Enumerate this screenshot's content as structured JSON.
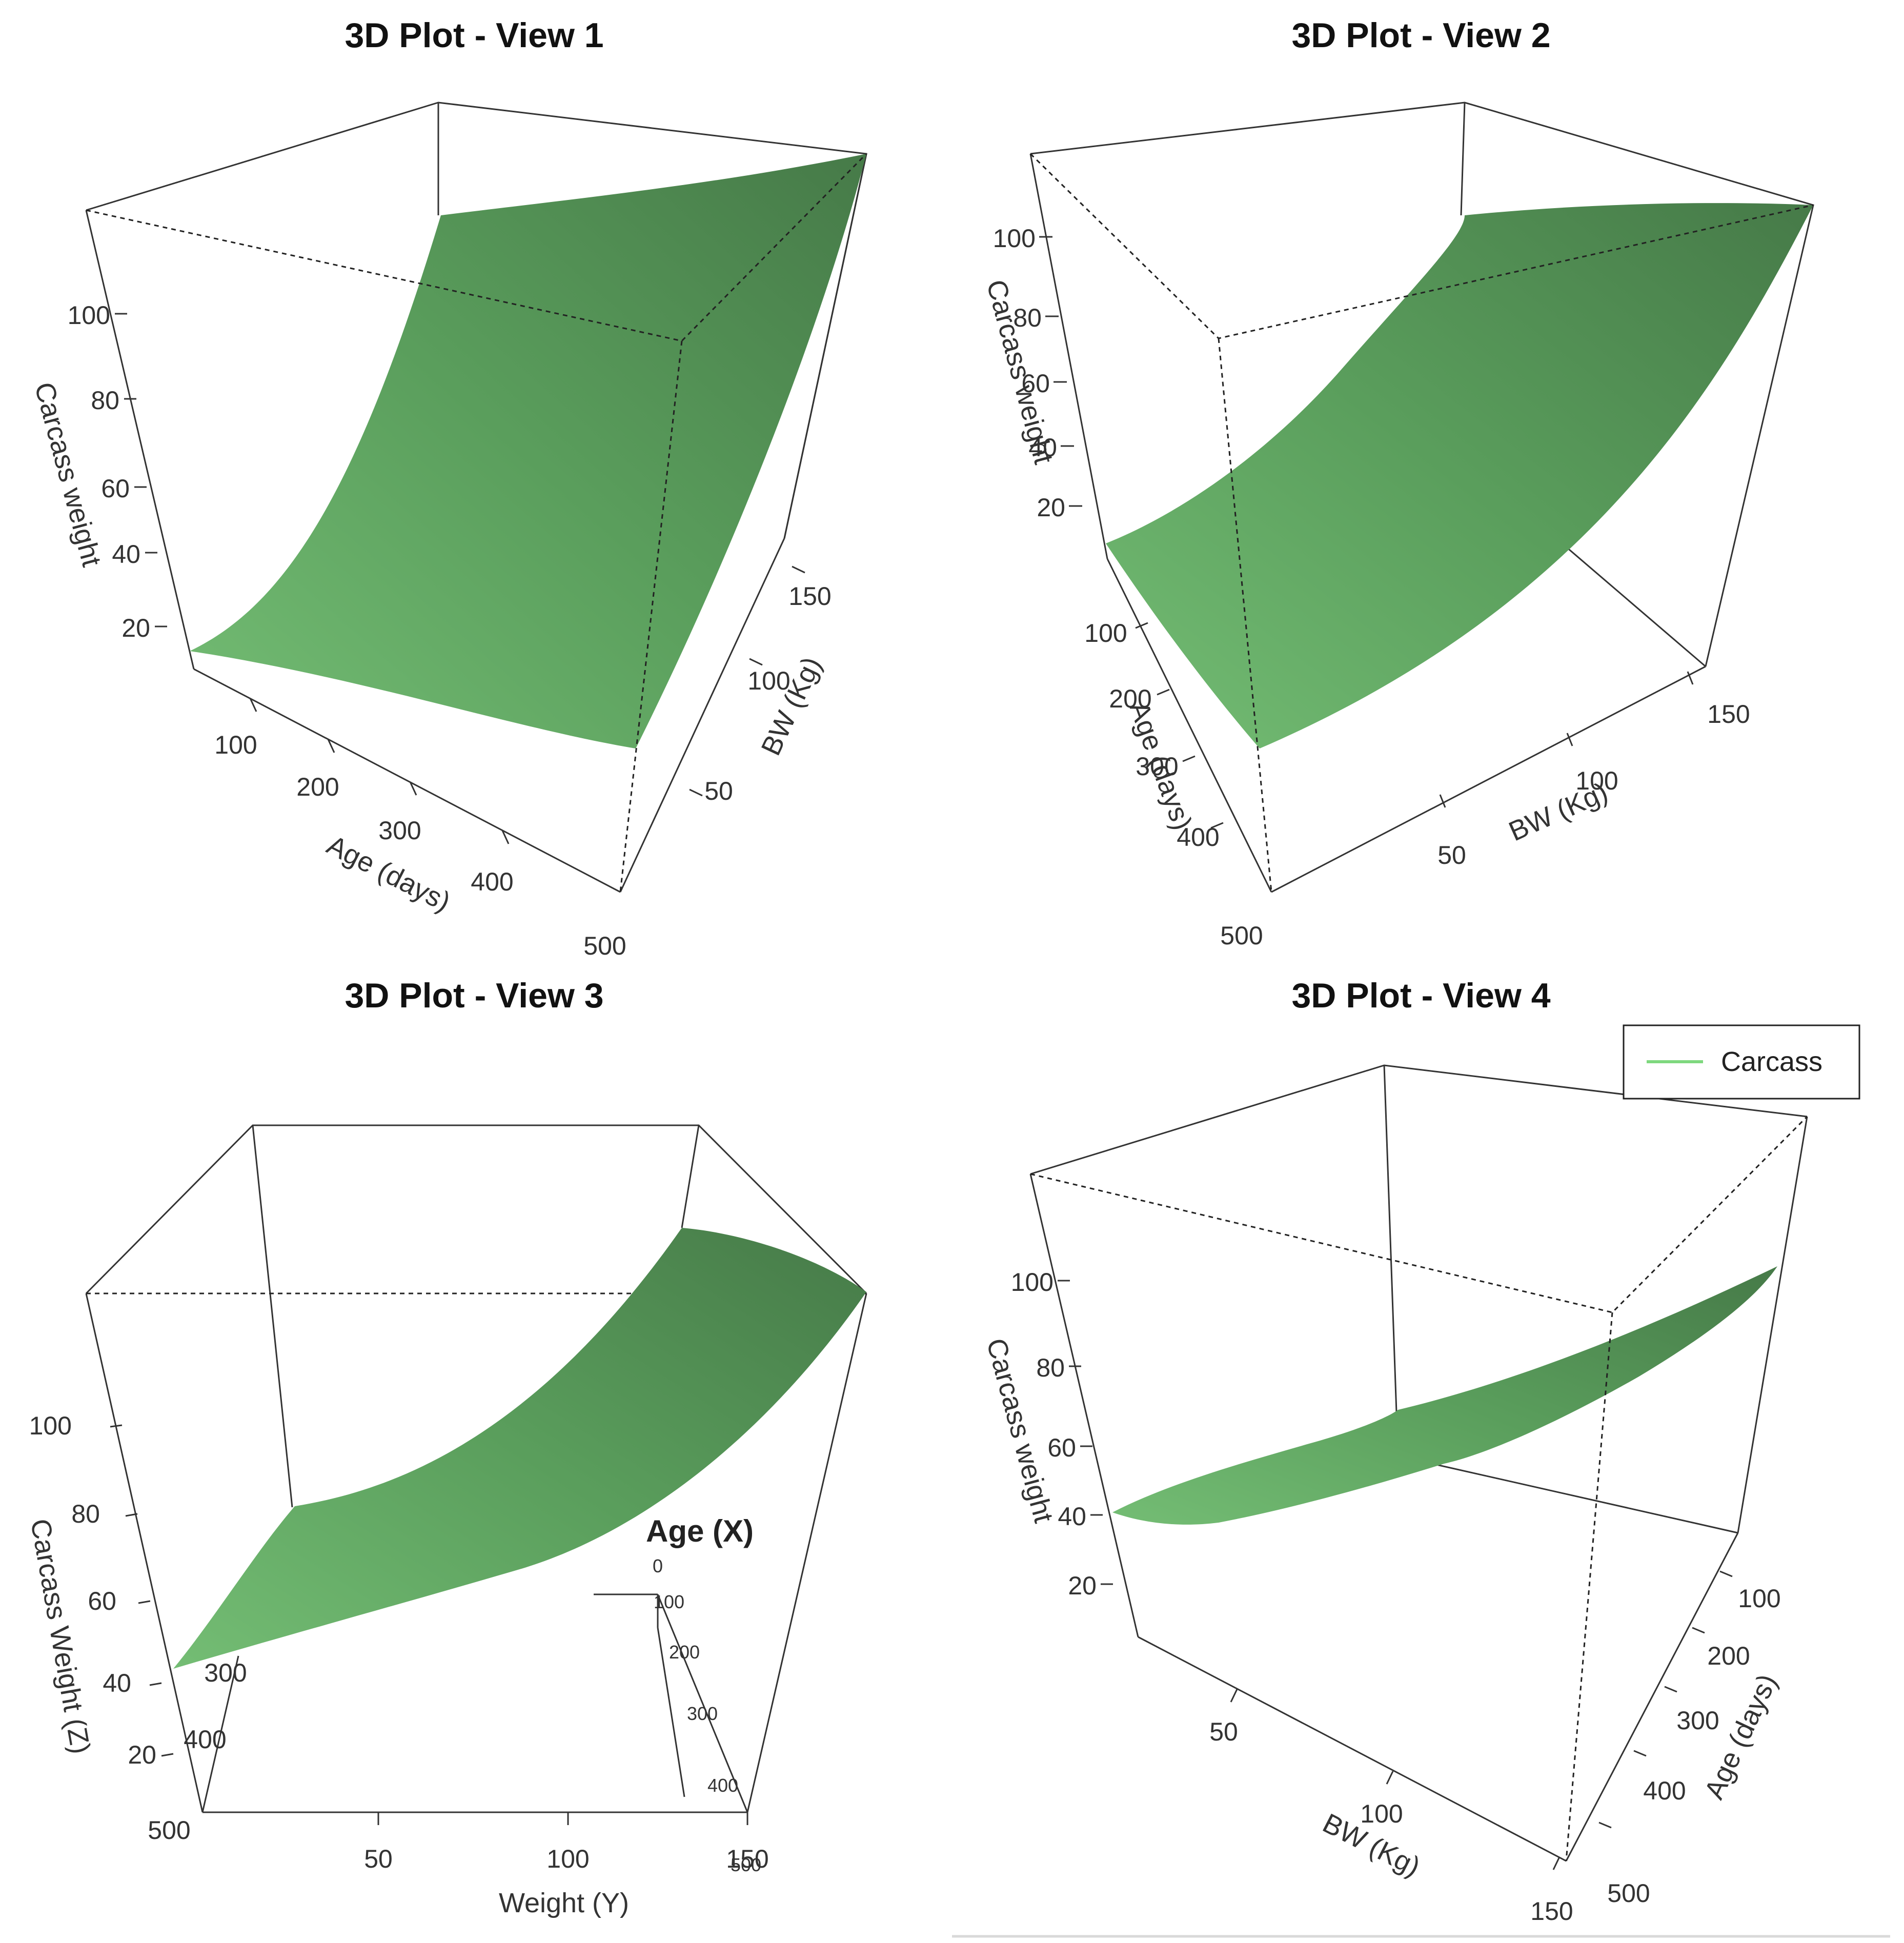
{
  "chart_data": [
    {
      "type": "surface3d",
      "title": "3D Plot - View 1",
      "zlabel": "Carcass weight",
      "xlabel": "Age (days)",
      "ylabel": "BW (Kg)",
      "zticks": [
        "20",
        "40",
        "60",
        "80",
        "100"
      ],
      "xticks": [
        "100",
        "200",
        "300",
        "400",
        "500"
      ],
      "yticks": [
        "50",
        "100",
        "150"
      ],
      "surface_color": "#5a9e5c",
      "series": [
        {
          "name": ""
        }
      ]
    },
    {
      "type": "surface3d",
      "title": "3D Plot - View 2",
      "zlabel": "Carcass weight",
      "xlabel": "Age (days)",
      "ylabel": "BW (Kg)",
      "zticks": [
        "20",
        "40",
        "60",
        "80",
        "100"
      ],
      "xticks": [
        "100",
        "200",
        "300",
        "400",
        "500"
      ],
      "yticks": [
        "50",
        "100",
        "150"
      ],
      "surface_color": "#5a9e5c",
      "series": [
        {
          "name": ""
        }
      ]
    },
    {
      "type": "surface3d",
      "title": "3D Plot - View 3",
      "zlabel": "Carcass Weight (Z)",
      "xlabel": "Age (X)",
      "ylabel": "Weight (Y)",
      "zticks": [
        "20",
        "40",
        "60",
        "80",
        "100"
      ],
      "xticks_back": [
        "0",
        "100",
        "200",
        "300",
        "400",
        "500"
      ],
      "xticks_front": [
        "300",
        "400",
        "500"
      ],
      "yticks": [
        "50",
        "100",
        "150"
      ],
      "surface_color": "#5a9e5c",
      "series": [
        {
          "name": ""
        }
      ]
    },
    {
      "type": "surface3d",
      "title": "3D Plot - View 4",
      "zlabel": "Carcass weight",
      "xlabel": "BW (Kg)",
      "ylabel": "Age (days)",
      "zticks": [
        "20",
        "40",
        "60",
        "80",
        "100"
      ],
      "xticks": [
        "50",
        "100",
        "150"
      ],
      "yticks": [
        "100",
        "200",
        "300",
        "400",
        "500"
      ],
      "legend": {
        "position": "top-right",
        "entries": [
          "Carcass"
        ],
        "color": "#7fd87f"
      },
      "surface_color": "#5a9e5c",
      "series": [
        {
          "name": "Carcass"
        }
      ]
    }
  ]
}
